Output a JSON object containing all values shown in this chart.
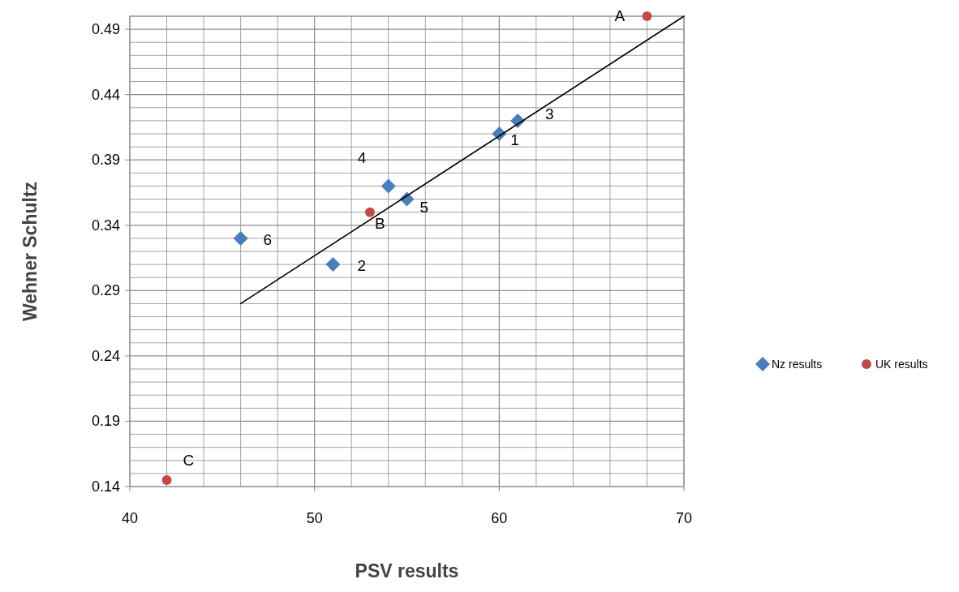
{
  "chart_data": {
    "type": "scatter",
    "xlabel": "PSV results",
    "ylabel": "Wehner Schultz",
    "xlim": [
      40,
      70
    ],
    "ylim": [
      0.14,
      0.5
    ],
    "xticks": [
      40,
      {
        "value": 42,
        "label": null
      },
      {
        "value": 44,
        "label": null
      },
      {
        "value": 46,
        "label": null
      },
      {
        "value": 48,
        "label": null
      },
      50,
      {
        "value": 52,
        "label": null
      },
      {
        "value": 54,
        "label": null
      },
      {
        "value": 56,
        "label": null
      },
      {
        "value": 58,
        "label": null
      },
      60,
      {
        "value": 62,
        "label": null
      },
      {
        "value": 64,
        "label": null
      },
      {
        "value": 66,
        "label": null
      },
      {
        "value": 68,
        "label": null
      },
      70
    ],
    "yticks": [
      0.14,
      {
        "value": 0.15,
        "label": null
      },
      {
        "value": 0.16,
        "label": null
      },
      {
        "value": 0.17,
        "label": null
      },
      {
        "value": 0.18,
        "label": null
      },
      0.19,
      {
        "value": 0.2,
        "label": null
      },
      {
        "value": 0.21,
        "label": null
      },
      {
        "value": 0.22,
        "label": null
      },
      {
        "value": 0.23,
        "label": null
      },
      0.24,
      {
        "value": 0.25,
        "label": null
      },
      {
        "value": 0.26,
        "label": null
      },
      {
        "value": 0.27,
        "label": null
      },
      {
        "value": 0.28,
        "label": null
      },
      0.29,
      {
        "value": 0.3,
        "label": null
      },
      {
        "value": 0.31,
        "label": null
      },
      {
        "value": 0.32,
        "label": null
      },
      {
        "value": 0.33,
        "label": null
      },
      0.34,
      {
        "value": 0.35,
        "label": null
      },
      {
        "value": 0.36,
        "label": null
      },
      {
        "value": 0.37,
        "label": null
      },
      {
        "value": 0.38,
        "label": null
      },
      0.39,
      {
        "value": 0.4,
        "label": null
      },
      {
        "value": 0.41,
        "label": null
      },
      {
        "value": 0.42,
        "label": null
      },
      {
        "value": 0.43,
        "label": null
      },
      0.44,
      {
        "value": 0.45,
        "label": null
      },
      {
        "value": 0.46,
        "label": null
      },
      {
        "value": 0.47,
        "label": null
      },
      {
        "value": 0.48,
        "label": null
      },
      0.49,
      {
        "value": 0.5,
        "label": null
      }
    ],
    "grid": true,
    "legend": "right",
    "series": [
      {
        "name": "Nz results",
        "color": "#4a7ebb",
        "marker": "diamond",
        "x": [
          60,
          51,
          61,
          54,
          55,
          46
        ],
        "values": [
          0.41,
          0.31,
          0.42,
          0.37,
          0.36,
          0.33
        ]
      },
      {
        "name": "UK results",
        "color": "#be4b48",
        "marker": "circle",
        "x": [
          68,
          53,
          42
        ],
        "values": [
          0.5,
          0.35,
          0.145
        ]
      },
      {
        "type": "line",
        "color": "#000000",
        "marker": "none",
        "x": [
          46,
          70
        ],
        "values": [
          0.28,
          0.5
        ]
      }
    ],
    "annotations": [
      {
        "text": "1",
        "x": 60,
        "y": 0.41
      },
      {
        "text": "2",
        "x": 51,
        "y": 0.31
      },
      {
        "text": "3",
        "x": 61,
        "y": 0.42
      },
      {
        "text": "4",
        "x": 54,
        "y": 0.37
      },
      {
        "text": "5",
        "x": 55,
        "y": 0.36
      },
      {
        "text": "6",
        "x": 46,
        "y": 0.33
      },
      {
        "text": "A",
        "x": 68,
        "y": 0.5
      },
      {
        "text": "B",
        "x": 53,
        "y": 0.35
      },
      {
        "text": "C",
        "x": 42,
        "y": 0.145
      }
    ]
  }
}
